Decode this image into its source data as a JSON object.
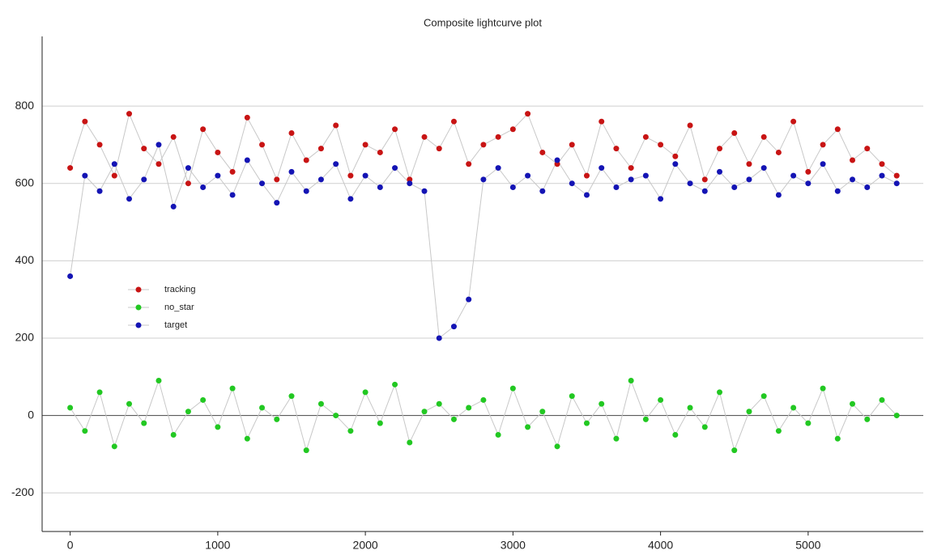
{
  "chart_data": {
    "type": "scatter",
    "title": "Composite lightcurve plot",
    "x": [
      0,
      100,
      200,
      300,
      400,
      500,
      600,
      700,
      800,
      900,
      1000,
      1100,
      1200,
      1300,
      1400,
      1500,
      1600,
      1700,
      1800,
      1900,
      2000,
      2100,
      2200,
      2300,
      2400,
      2500,
      2600,
      2700,
      2800,
      2900,
      3000,
      3100,
      3200,
      3300,
      3400,
      3500,
      3600,
      3700,
      3800,
      3900,
      4000,
      4100,
      4200,
      4300,
      4400,
      4500,
      4600,
      4700,
      4800,
      4900,
      5000,
      5100,
      5200,
      5300,
      5400,
      5500,
      5600
    ],
    "series": [
      {
        "name": "tracking",
        "color": "#c81414",
        "values": [
          640,
          760,
          700,
          620,
          780,
          690,
          650,
          720,
          600,
          740,
          680,
          630,
          770,
          700,
          610,
          730,
          660,
          690,
          750,
          620,
          700,
          680,
          740,
          610,
          720,
          690,
          760,
          650,
          700,
          720,
          740,
          780,
          680,
          650,
          700,
          620,
          760,
          690,
          640,
          720,
          700,
          670,
          750,
          610,
          690,
          730,
          650,
          720,
          680,
          760,
          630,
          700,
          740,
          660,
          690,
          650,
          620
        ]
      },
      {
        "name": "no_star",
        "color": "#22c822",
        "values": [
          20,
          -40,
          60,
          -80,
          30,
          -20,
          90,
          -50,
          10,
          40,
          -30,
          70,
          -60,
          20,
          -10,
          50,
          -90,
          30,
          0,
          -40,
          60,
          -20,
          80,
          -70,
          10,
          30,
          -10,
          20,
          40,
          -50,
          70,
          -30,
          10,
          -80,
          50,
          -20,
          30,
          -60,
          90,
          -10,
          40,
          -50,
          20,
          -30,
          60,
          -90,
          10,
          50,
          -40,
          20,
          -20,
          70,
          -60,
          30,
          -10,
          40,
          0
        ]
      },
      {
        "name": "target",
        "color": "#1414b4",
        "values": [
          360,
          620,
          580,
          650,
          560,
          610,
          700,
          540,
          640,
          590,
          620,
          570,
          660,
          600,
          550,
          630,
          580,
          610,
          650,
          560,
          620,
          590,
          640,
          600,
          580,
          200,
          230,
          300,
          610,
          640,
          590,
          620,
          580,
          660,
          600,
          570,
          640,
          590,
          610,
          620,
          560,
          650,
          600,
          580,
          630,
          590,
          610,
          640,
          570,
          620,
          600,
          650,
          580,
          610,
          590,
          620,
          600
        ]
      }
    ],
    "xlim": [
      -190,
      5780
    ],
    "ylim": [
      -300,
      980
    ],
    "xticks": [
      0,
      1000,
      2000,
      3000,
      4000,
      5000
    ],
    "yticks": [
      -200,
      0,
      200,
      400,
      600,
      800
    ],
    "grid": true,
    "legend": "upper left"
  }
}
